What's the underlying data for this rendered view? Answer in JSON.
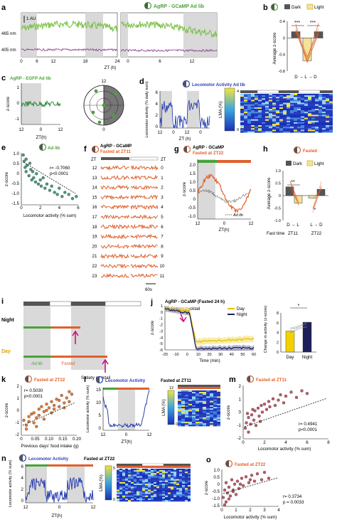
{
  "panels": {
    "a": {
      "letter": "a",
      "title": "AgRP - GCaMP Ad lib",
      "scale": "1 AU",
      "ch1": "465 nm",
      "ch2": "405 nm",
      "xticks": [
        "0",
        "6",
        "12",
        "18",
        "24",
        "0",
        "6",
        "12"
      ],
      "xlabel": "ZT (h)"
    },
    "b": {
      "letter": "b",
      "legend_dark": "Dark",
      "legend_light": "Light",
      "ylabel": "Average z-score",
      "yticks": [
        "0.4",
        "0",
        "-0.4",
        "-0.8"
      ],
      "sig1": "***",
      "sig2": "***",
      "xlabel": "D → L → D",
      "chart_data": {
        "type": "bar",
        "categories": [
          "Dark",
          "Light",
          "Dark"
        ],
        "values": [
          0.15,
          -0.55,
          0.15
        ],
        "ylim": [
          -0.8,
          0.4
        ]
      }
    },
    "c": {
      "letter": "c",
      "title": "AgRP - EGFP Ad lib",
      "ylabel": "z-score",
      "yticks": [
        "1",
        "0",
        "-1"
      ],
      "xticks": [
        "12",
        "0",
        "12"
      ],
      "xlabel": "ZT(h)",
      "clock_top": "12",
      "clock_bottom": "0"
    },
    "d": {
      "letter": "d",
      "title": "Locomotor Activity Ad lib",
      "ylabel": "Locomotor activity (% daily sum)",
      "yticks": [
        "6",
        "4",
        "2",
        "0"
      ],
      "xticks": [
        "12",
        "0",
        "12",
        "0"
      ],
      "xlabel": "ZT (h)",
      "lma": "LMA (%)",
      "cbar": [
        "4",
        "0"
      ]
    },
    "e": {
      "letter": "e",
      "title": "Ad lib",
      "ylabel": "z-score",
      "yticks": [
        "1.0",
        "0.5",
        "0",
        "-0.5",
        "-1.0",
        "-1.5"
      ],
      "xticks": [
        "0",
        "2",
        "4",
        "6"
      ],
      "xlabel": "Locomotor activity (% sum)",
      "r": "r= -0.7060",
      "p": "p<0.0001",
      "chart_data": {
        "type": "scatter",
        "x": [
          0.2,
          0.3,
          0.4,
          0.5,
          0.5,
          0.6,
          0.8,
          0.9,
          1.0,
          1.1,
          1.2,
          1.3,
          1.5,
          1.6,
          1.8,
          2.0,
          2.1,
          2.3,
          2.5,
          2.7,
          3.0,
          3.2,
          3.5,
          3.8,
          4.0,
          4.3,
          4.6,
          5.0,
          5.4,
          5.8
        ],
        "y": [
          0.9,
          0.6,
          0.3,
          0.7,
          0.1,
          0.4,
          -0.1,
          0.5,
          0.2,
          -0.3,
          0.1,
          -0.2,
          -0.4,
          0.0,
          -0.5,
          -0.3,
          -0.6,
          -0.2,
          -0.7,
          -0.5,
          -0.8,
          -0.6,
          -0.9,
          -1.0,
          -0.7,
          -1.1,
          -0.9,
          -1.0,
          -1.2,
          -1.1
        ],
        "xlim": [
          0,
          6
        ],
        "ylim": [
          -1.5,
          1.0
        ]
      }
    },
    "f": {
      "letter": "f",
      "title1": "AgRP - GCaMP",
      "title2": "Fasted at ZT11",
      "zt_left": "ZT",
      "zt_right": "ZT",
      "left_labels": [
        "12",
        "13",
        "14",
        "15",
        "16",
        "17",
        "18",
        "19",
        "20",
        "21",
        "22",
        "23"
      ],
      "right_labels": [
        "0",
        "1",
        "2",
        "3",
        "4",
        "5",
        "6",
        "7",
        "8",
        "9",
        "10",
        "11"
      ],
      "scale": "60s"
    },
    "g": {
      "letter": "g",
      "title1": "AgRP - GCaMP",
      "title2": "Fasted at ZT22",
      "ylabel": "z-score",
      "yticks": [
        "2.0",
        "1.5",
        "1.0",
        "0.5",
        "0",
        "-0.5",
        "-1.0"
      ],
      "xticks": [
        "12",
        "0",
        "12"
      ],
      "xlabel": "ZT(h)",
      "legend": "Ad lib"
    },
    "h": {
      "letter": "h",
      "title": "Fasted",
      "legend_dark": "Dark",
      "legend_light": "Light",
      "ylabel": "Average z-score",
      "yticks": [
        "1.0",
        "0.5",
        "0",
        "-0.5",
        "-1.0"
      ],
      "sig": "**",
      "sig2": "*",
      "x1": "D → L",
      "x2": "L → D",
      "fast_time": "Fast time",
      "g1": "ZT11",
      "g2": "ZT22",
      "chart_data": {
        "type": "bar",
        "categories": [
          "ZT11 Dark",
          "ZT11 Light",
          "ZT22 Light",
          "ZT22 Dark"
        ],
        "values": [
          0.35,
          -0.3,
          -0.1,
          0.25
        ],
        "ylim": [
          -1.0,
          1.0
        ]
      }
    },
    "i": {
      "letter": "i",
      "night": "Night",
      "day": "Day",
      "adlib": "Ad lib",
      "fasted": "Fasted",
      "satiety": "Satiety cocktail"
    },
    "j": {
      "letter": "j",
      "title": "AgRP - GCaMP (Fasted 24 h)",
      "satiety": "Satiety cocktail",
      "legend_day": "Day",
      "legend_night": "Night",
      "ylabel": "z-score",
      "yticks": [
        "1",
        "0",
        "-1",
        "-2",
        "-3",
        "-4",
        "-5",
        "-6"
      ],
      "xticks": [
        "-20",
        "-10",
        "0",
        "10",
        "20",
        "30",
        "40",
        "50",
        "60"
      ],
      "xlabel": "Time (min)",
      "bar_ylabel": "Change in activity (z-score)",
      "bar_yticks": [
        "8",
        "6",
        "4",
        "2",
        "0"
      ],
      "bar_sig": "*",
      "bar_x": [
        "Day",
        "Night"
      ],
      "chart_data": {
        "type": "bar",
        "categories": [
          "Day",
          "Night"
        ],
        "values": [
          4.3,
          6.1
        ],
        "ylim": [
          0,
          8
        ]
      }
    },
    "k": {
      "letter": "k",
      "title": "Fasted at ZT22",
      "ylabel": "z-score",
      "yticks": [
        "2",
        "1",
        "0",
        "-1",
        "-2"
      ],
      "xticks": [
        "0",
        "0.05",
        "0.10",
        "0.15",
        "0.20"
      ],
      "xlabel": "Previous days' food intake (g)",
      "r": "r= 0.5030",
      "p": "p<0.0001",
      "chart_data": {
        "type": "scatter",
        "x": [
          0.01,
          0.02,
          0.03,
          0.03,
          0.04,
          0.05,
          0.05,
          0.06,
          0.07,
          0.07,
          0.08,
          0.09,
          0.1,
          0.1,
          0.11,
          0.12,
          0.12,
          0.13,
          0.14,
          0.15,
          0.15,
          0.16,
          0.17,
          0.18,
          0.19,
          0.19,
          0.2,
          0.02,
          0.06,
          0.09,
          0.13,
          0.17
        ],
        "y": [
          -0.8,
          -1.2,
          -0.5,
          -0.9,
          -0.3,
          -1.0,
          -0.2,
          -0.6,
          0.1,
          -0.4,
          0.3,
          -0.1,
          0.5,
          0.0,
          0.2,
          0.7,
          -0.2,
          0.4,
          0.9,
          0.3,
          0.8,
          1.2,
          0.6,
          1.0,
          1.5,
          0.7,
          1.3,
          -1.5,
          -1.3,
          -0.7,
          0.1,
          0.2
        ],
        "xlim": [
          0,
          0.22
        ],
        "ylim": [
          -2,
          2
        ]
      }
    },
    "l": {
      "letter": "l",
      "title1": "Locomotor Activity",
      "title2": "Fasted at ZT11",
      "ylabel": "Locomotor activity (% sum)",
      "yticks": [
        "15",
        "10",
        "5",
        "0"
      ],
      "xticks": [
        "12",
        "0",
        "12"
      ],
      "xlabel": "ZT(h)",
      "lma": "LMA (%)",
      "cbar": [
        "12",
        "0"
      ]
    },
    "m": {
      "letter": "m",
      "title": "Fasted at ZT11",
      "ylabel": "z-score",
      "yticks": [
        "2",
        "1",
        "0",
        "-1",
        "-2"
      ],
      "xticks": [
        "0",
        "2",
        "4",
        "6",
        "8"
      ],
      "xlabel": "Locomotor activity (% sum)",
      "r": "r= 0.4941",
      "p": "p<0.0001",
      "chart_data": {
        "type": "scatter",
        "x": [
          0.2,
          0.3,
          0.5,
          0.5,
          0.7,
          0.8,
          1.0,
          1.1,
          1.2,
          1.4,
          1.5,
          1.7,
          1.8,
          2.0,
          2.2,
          2.4,
          2.5,
          2.8,
          3.0,
          3.3,
          3.5,
          3.8,
          4.0,
          4.5,
          5.0,
          5.5,
          6.0,
          0.4,
          0.9,
          1.6
        ],
        "y": [
          -1.2,
          -0.8,
          -1.5,
          -0.4,
          -0.9,
          -0.2,
          -0.6,
          0.1,
          -1.0,
          0.3,
          -0.3,
          0.5,
          0.0,
          0.6,
          0.2,
          0.8,
          0.4,
          1.0,
          0.5,
          0.9,
          1.3,
          0.7,
          1.2,
          1.5,
          1.1,
          1.6,
          1.4,
          -0.1,
          0.2,
          -0.7
        ],
        "xlim": [
          0,
          8
        ],
        "ylim": [
          -2,
          2
        ]
      }
    },
    "n": {
      "letter": "n",
      "title1": "Locomotor Activity",
      "title2": "Fasted at ZT22",
      "ylabel": "Locomotor activity (% sum)",
      "yticks": [
        "6",
        "4",
        "2",
        "0"
      ],
      "xticks": [
        "12",
        "0",
        "12"
      ],
      "xlabel": "ZT(h)",
      "lma": "LMA (%)",
      "cbar": [
        "5",
        "0"
      ]
    },
    "o": {
      "letter": "o",
      "title": "Fasted at ZT22",
      "ylabel": "z-score",
      "yticks": [
        "1.0",
        "0.5",
        "0",
        "-0.5",
        "-1.0",
        "-1.5"
      ],
      "xticks": [
        "0",
        "1",
        "2",
        "3",
        "4"
      ],
      "xlabel": "Locomotor activity (% sum)",
      "r": "r= 0.3734",
      "p": "p = 0.0033",
      "chart_data": {
        "type": "scatter",
        "x": [
          0.1,
          0.2,
          0.3,
          0.3,
          0.4,
          0.5,
          0.6,
          0.7,
          0.8,
          0.9,
          1.0,
          1.1,
          1.2,
          1.4,
          1.5,
          1.7,
          1.9,
          2.1,
          2.3,
          2.5,
          2.8,
          3.0,
          3.3,
          0.2,
          0.5,
          0.8,
          1.3,
          2.0
        ],
        "y": [
          -0.9,
          -0.4,
          -1.2,
          0.1,
          -0.6,
          -0.2,
          -0.8,
          0.3,
          -0.4,
          0.0,
          -0.7,
          0.2,
          -0.3,
          0.4,
          -0.1,
          0.5,
          0.1,
          0.6,
          0.2,
          0.7,
          0.3,
          0.8,
          0.4,
          -1.4,
          -1.0,
          -0.5,
          0.0,
          0.3
        ],
        "xlim": [
          0,
          4
        ],
        "ylim": [
          -1.5,
          1.0
        ]
      }
    }
  },
  "colors": {
    "green": "#4aa23a",
    "orange": "#e0602b",
    "blue": "#2a3fb0",
    "gray": "#d9d9d9",
    "yellow": "#f2e39a",
    "dark": "#555555"
  }
}
